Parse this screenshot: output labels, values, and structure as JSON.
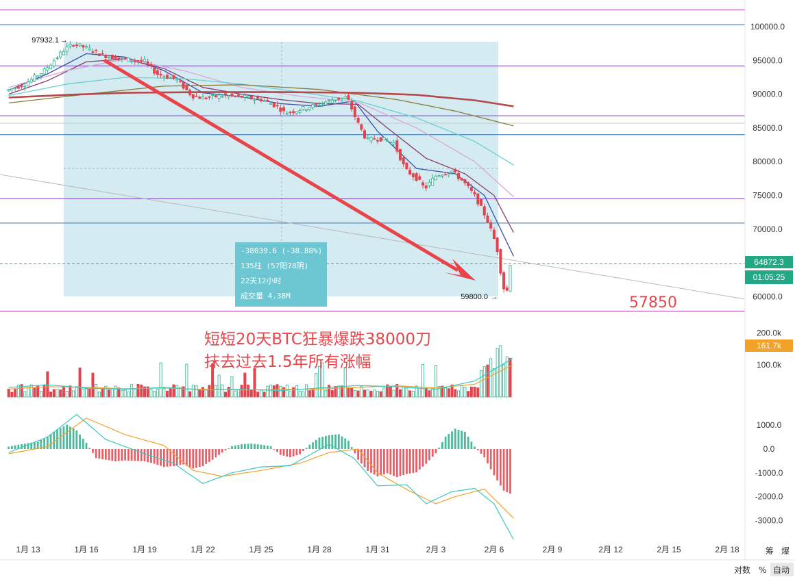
{
  "chart_data": {
    "type": "candlestick",
    "price_axis": {
      "ticks": [
        100000,
        95000,
        90000,
        85000,
        80000,
        75000,
        70000,
        65000,
        60000
      ],
      "tick_labels": [
        "100000.0",
        "95000.0",
        "90000.0",
        "85000.0",
        "80000.0",
        "75000.0",
        "70000.0",
        "",
        "60000.0"
      ]
    },
    "x_axis": {
      "tick_labels": [
        "1月 13",
        "1月 16",
        "1月 19",
        "1月 22",
        "1月 25",
        "1月 28",
        "1月 31",
        "2月 3",
        "2月 6",
        "2月 9",
        "2月 12",
        "2月 15",
        "2月 18"
      ]
    },
    "last_price": "64872.3",
    "countdown": "01:05:25",
    "high_marker": "97932.1",
    "low_marker": "59800.0",
    "price_path": [
      {
        "d": 12.0,
        "p": 90500
      },
      {
        "d": 13.0,
        "p": 91500
      },
      {
        "d": 14.0,
        "p": 93500
      },
      {
        "d": 15.0,
        "p": 96500
      },
      {
        "d": 15.5,
        "p": 97500
      },
      {
        "d": 16.2,
        "p": 96800
      },
      {
        "d": 17.0,
        "p": 95800
      },
      {
        "d": 18.0,
        "p": 95200
      },
      {
        "d": 19.2,
        "p": 94800
      },
      {
        "d": 19.8,
        "p": 93000
      },
      {
        "d": 20.8,
        "p": 92200
      },
      {
        "d": 21.6,
        "p": 89800
      },
      {
        "d": 22.2,
        "p": 89400
      },
      {
        "d": 23.2,
        "p": 89800
      },
      {
        "d": 24.2,
        "p": 89600
      },
      {
        "d": 25.2,
        "p": 89200
      },
      {
        "d": 26.0,
        "p": 88200
      },
      {
        "d": 26.4,
        "p": 87200
      },
      {
        "d": 27.0,
        "p": 87600
      },
      {
        "d": 28.0,
        "p": 88400
      },
      {
        "d": 29.0,
        "p": 89300
      },
      {
        "d": 29.6,
        "p": 89500
      },
      {
        "d": 30.1,
        "p": 86000
      },
      {
        "d": 30.6,
        "p": 83200
      },
      {
        "d": 31.2,
        "p": 83500
      },
      {
        "d": 32.0,
        "p": 82800
      },
      {
        "d": 32.6,
        "p": 78800
      },
      {
        "d": 33.2,
        "p": 77500
      },
      {
        "d": 33.6,
        "p": 76000
      },
      {
        "d": 34.2,
        "p": 78000
      },
      {
        "d": 35.0,
        "p": 78600
      },
      {
        "d": 35.6,
        "p": 77000
      },
      {
        "d": 36.2,
        "p": 74800
      },
      {
        "d": 36.8,
        "p": 71500
      },
      {
        "d": 37.3,
        "p": 67500
      },
      {
        "d": 37.6,
        "p": 62000
      },
      {
        "d": 37.8,
        "p": 59800
      },
      {
        "d": 37.95,
        "p": 64872
      }
    ],
    "moving_averages": [
      {
        "color": "#3b4ea8",
        "points": [
          {
            "d": 12.0,
            "p": 90600
          },
          {
            "d": 14.0,
            "p": 93000
          },
          {
            "d": 16.0,
            "p": 96000
          },
          {
            "d": 18.0,
            "p": 95500
          },
          {
            "d": 20.0,
            "p": 93500
          },
          {
            "d": 22.0,
            "p": 90200
          },
          {
            "d": 24.0,
            "p": 89600
          },
          {
            "d": 26.0,
            "p": 88600
          },
          {
            "d": 28.0,
            "p": 88200
          },
          {
            "d": 29.8,
            "p": 89000
          },
          {
            "d": 31.0,
            "p": 84500
          },
          {
            "d": 33.0,
            "p": 79000
          },
          {
            "d": 35.0,
            "p": 78200
          },
          {
            "d": 36.5,
            "p": 75000
          },
          {
            "d": 38.0,
            "p": 66000
          }
        ]
      },
      {
        "color": "#8a3a6a",
        "points": [
          {
            "d": 12.0,
            "p": 90000
          },
          {
            "d": 14.0,
            "p": 92000
          },
          {
            "d": 16.0,
            "p": 94800
          },
          {
            "d": 18.0,
            "p": 95200
          },
          {
            "d": 20.0,
            "p": 93800
          },
          {
            "d": 22.0,
            "p": 91000
          },
          {
            "d": 24.0,
            "p": 90000
          },
          {
            "d": 26.0,
            "p": 89200
          },
          {
            "d": 28.0,
            "p": 88600
          },
          {
            "d": 30.0,
            "p": 88500
          },
          {
            "d": 31.5,
            "p": 85000
          },
          {
            "d": 33.5,
            "p": 80500
          },
          {
            "d": 35.5,
            "p": 78200
          },
          {
            "d": 37.0,
            "p": 75000
          },
          {
            "d": 38.0,
            "p": 69500
          }
        ]
      },
      {
        "color": "#d9a6d9",
        "points": [
          {
            "d": 12.0,
            "p": 91000
          },
          {
            "d": 15.0,
            "p": 93500
          },
          {
            "d": 18.0,
            "p": 95200
          },
          {
            "d": 21.0,
            "p": 93500
          },
          {
            "d": 24.0,
            "p": 91000
          },
          {
            "d": 27.0,
            "p": 89700
          },
          {
            "d": 30.0,
            "p": 88800
          },
          {
            "d": 33.0,
            "p": 85000
          },
          {
            "d": 36.0,
            "p": 80000
          },
          {
            "d": 38.0,
            "p": 74800
          }
        ]
      },
      {
        "color": "#6ad0d0",
        "points": [
          {
            "d": 12.0,
            "p": 89800
          },
          {
            "d": 15.0,
            "p": 91500
          },
          {
            "d": 18.0,
            "p": 92500
          },
          {
            "d": 21.0,
            "p": 92300
          },
          {
            "d": 24.0,
            "p": 91500
          },
          {
            "d": 27.0,
            "p": 90300
          },
          {
            "d": 30.0,
            "p": 89000
          },
          {
            "d": 33.0,
            "p": 86500
          },
          {
            "d": 36.0,
            "p": 83000
          },
          {
            "d": 38.0,
            "p": 79500
          }
        ]
      },
      {
        "color": "#8a7a3a",
        "points": [
          {
            "d": 12.0,
            "p": 88700
          },
          {
            "d": 16.0,
            "p": 90000
          },
          {
            "d": 20.0,
            "p": 91200
          },
          {
            "d": 24.0,
            "p": 91400
          },
          {
            "d": 28.0,
            "p": 90700
          },
          {
            "d": 32.0,
            "p": 89200
          },
          {
            "d": 35.0,
            "p": 87500
          },
          {
            "d": 38.0,
            "p": 85300
          }
        ]
      },
      {
        "color": "#b5484a",
        "points": [
          {
            "d": 12.0,
            "p": 89500
          },
          {
            "d": 15.0,
            "p": 89900
          },
          {
            "d": 18.0,
            "p": 90200
          },
          {
            "d": 22.0,
            "p": 90300
          },
          {
            "d": 26.0,
            "p": 90300
          },
          {
            "d": 30.0,
            "p": 90200
          },
          {
            "d": 33.0,
            "p": 89900
          },
          {
            "d": 36.0,
            "p": 89100
          },
          {
            "d": 38.0,
            "p": 88200
          }
        ]
      }
    ],
    "horizontal_levels": [
      {
        "p": 102500,
        "color": "#b03aa6"
      },
      {
        "p": 100300,
        "color": "#2d76b8"
      },
      {
        "p": 94200,
        "color": "#7a3ec7"
      },
      {
        "p": 86800,
        "color": "#7a3ec7"
      },
      {
        "p": 84000,
        "color": "#2d76b8"
      },
      {
        "p": 74500,
        "color": "#7a3ec7"
      },
      {
        "p": 70900,
        "color": "#2d76b8"
      },
      {
        "p": 57850,
        "color": "#b03aa6"
      }
    ],
    "measure_tooltip": {
      "change": "-38039.6 (-38.88%)",
      "bars": "135柱 (57阳78阴)",
      "duration": "22天12小时",
      "volume": "成交量 4.38M"
    },
    "annotation_level": "57850",
    "headline": [
      "短短20天BTC狂暴爆跌38000刀",
      "抹去过去1.5年所有涨幅"
    ],
    "volume_axis": {
      "ticks": [
        200000,
        100000
      ],
      "tick_labels": [
        "200.0k",
        "100.0k"
      ],
      "current_label": "161.7k"
    },
    "macd_axis": {
      "ticks": [
        1000,
        0,
        -1000,
        -2000,
        -3000
      ],
      "tick_labels": [
        "1000.0",
        "0.0",
        "-1000.0",
        "-2000.0",
        "-3000.0"
      ]
    },
    "macd_histogram": [
      [
        12.0,
        100
      ],
      [
        12.5,
        180
      ],
      [
        13.0,
        250
      ],
      [
        13.5,
        300
      ],
      [
        14.0,
        520
      ],
      [
        14.5,
        820
      ],
      [
        15.0,
        1020
      ],
      [
        15.5,
        780
      ],
      [
        16.0,
        260
      ],
      [
        16.5,
        -380
      ],
      [
        17.0,
        -450
      ],
      [
        17.5,
        -520
      ],
      [
        18.0,
        -480
      ],
      [
        18.5,
        -500
      ],
      [
        19.0,
        -520
      ],
      [
        19.5,
        -620
      ],
      [
        20.0,
        -750
      ],
      [
        20.5,
        -720
      ],
      [
        21.0,
        -650
      ],
      [
        21.5,
        -820
      ],
      [
        22.0,
        -720
      ],
      [
        22.5,
        -450
      ],
      [
        23.0,
        -150
      ],
      [
        23.5,
        120
      ],
      [
        24.0,
        200
      ],
      [
        24.5,
        230
      ],
      [
        25.0,
        180
      ],
      [
        25.5,
        120
      ],
      [
        26.0,
        -250
      ],
      [
        26.5,
        -350
      ],
      [
        27.0,
        -220
      ],
      [
        27.5,
        180
      ],
      [
        28.0,
        480
      ],
      [
        28.5,
        580
      ],
      [
        29.0,
        620
      ],
      [
        29.5,
        350
      ],
      [
        30.0,
        -450
      ],
      [
        30.5,
        -920
      ],
      [
        31.0,
        -1150
      ],
      [
        31.5,
        -1020
      ],
      [
        32.0,
        -1180
      ],
      [
        32.5,
        -1050
      ],
      [
        33.0,
        -980
      ],
      [
        33.5,
        -620
      ],
      [
        34.0,
        -180
      ],
      [
        34.5,
        520
      ],
      [
        35.0,
        850
      ],
      [
        35.5,
        720
      ],
      [
        36.0,
        100
      ],
      [
        36.5,
        -350
      ],
      [
        37.0,
        -1100
      ],
      [
        37.5,
        -1750
      ],
      [
        37.9,
        -1900
      ]
    ],
    "macd_lines": [
      {
        "color": "#f0a22a",
        "points": [
          {
            "d": 12.0,
            "p": -200
          },
          {
            "d": 14.0,
            "p": 100
          },
          {
            "d": 16.0,
            "p": 1300
          },
          {
            "d": 18.0,
            "p": 600
          },
          {
            "d": 20.0,
            "p": 150
          },
          {
            "d": 21.5,
            "p": -900
          },
          {
            "d": 23.0,
            "p": -1150
          },
          {
            "d": 25.0,
            "p": -900
          },
          {
            "d": 27.0,
            "p": -600
          },
          {
            "d": 28.5,
            "p": -150
          },
          {
            "d": 30.0,
            "p": 0
          },
          {
            "d": 31.0,
            "p": -1000
          },
          {
            "d": 32.5,
            "p": -1700
          },
          {
            "d": 34.0,
            "p": -2300
          },
          {
            "d": 35.0,
            "p": -2000
          },
          {
            "d": 36.5,
            "p": -1680
          },
          {
            "d": 38.0,
            "p": -2900
          }
        ]
      },
      {
        "color": "#3fc7bd",
        "points": [
          {
            "d": 12.0,
            "p": -150
          },
          {
            "d": 14.0,
            "p": 500
          },
          {
            "d": 15.5,
            "p": 1450
          },
          {
            "d": 17.0,
            "p": 400
          },
          {
            "d": 19.0,
            "p": -200
          },
          {
            "d": 20.5,
            "p": -600
          },
          {
            "d": 22.0,
            "p": -1450
          },
          {
            "d": 23.5,
            "p": -1000
          },
          {
            "d": 25.0,
            "p": -750
          },
          {
            "d": 26.5,
            "p": -700
          },
          {
            "d": 28.5,
            "p": 200
          },
          {
            "d": 29.8,
            "p": -400
          },
          {
            "d": 31.0,
            "p": -1550
          },
          {
            "d": 32.5,
            "p": -1500
          },
          {
            "d": 33.5,
            "p": -2300
          },
          {
            "d": 34.8,
            "p": -1800
          },
          {
            "d": 36.0,
            "p": -1650
          },
          {
            "d": 37.0,
            "p": -2300
          },
          {
            "d": 38.0,
            "p": -3800
          }
        ]
      }
    ],
    "controls": {
      "left": "筹",
      "right": "爆"
    },
    "scale_buttons": [
      "对数",
      "%",
      "自动"
    ]
  }
}
